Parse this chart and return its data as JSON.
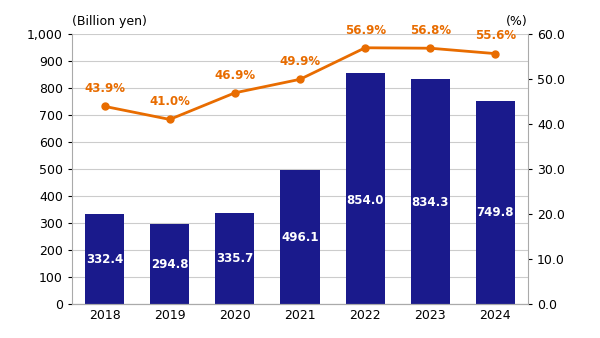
{
  "years": [
    "2018",
    "2019",
    "2020",
    "2021",
    "2022",
    "2023",
    "2024"
  ],
  "bar_values": [
    332.4,
    294.8,
    335.7,
    496.1,
    854.0,
    834.3,
    749.8
  ],
  "bar_color": "#1a1a8c",
  "line_values": [
    43.9,
    41.0,
    46.9,
    49.9,
    56.9,
    56.8,
    55.6
  ],
  "line_color": "#e86c00",
  "line_marker": "o",
  "bar_label_color": "#ffffff",
  "bar_label_fontsize": 8.5,
  "line_label_color": "#e86c00",
  "line_label_fontsize": 8.5,
  "left_ylabel": "(Billion yen)",
  "right_ylabel": "(%)",
  "left_ylim": [
    0,
    1000
  ],
  "left_yticks": [
    0,
    100,
    200,
    300,
    400,
    500,
    600,
    700,
    800,
    900,
    1000
  ],
  "right_ylim": [
    0.0,
    60.0
  ],
  "right_yticks": [
    0.0,
    10.0,
    20.0,
    30.0,
    40.0,
    50.0,
    60.0
  ],
  "grid_color": "#cccccc",
  "background_color": "#ffffff",
  "figsize": [
    6.0,
    3.38
  ],
  "dpi": 100
}
